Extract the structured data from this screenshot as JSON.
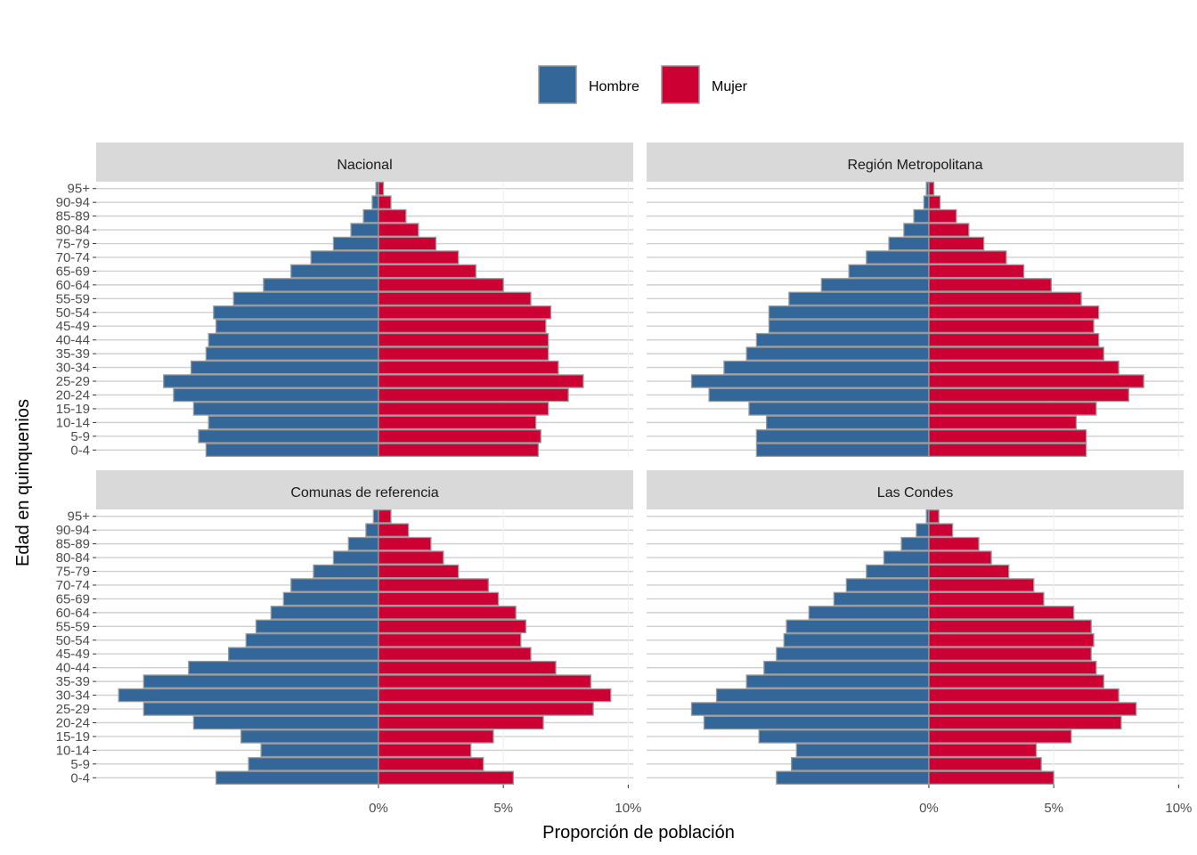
{
  "chart_data": {
    "type": "bar",
    "orientation": "horizontal",
    "xlabel": "Proporción de población",
    "ylabel": "Edad en quinquenios",
    "xticks": [
      "0%",
      "5%",
      "10%"
    ],
    "xlim": [
      -11.3,
      10.2
    ],
    "legend": {
      "position": "top",
      "entries": [
        {
          "name": "Hombre",
          "color": "#336699"
        },
        {
          "name": "Mujer",
          "color": "#CC0033"
        }
      ]
    },
    "grid": true,
    "categories": [
      "0-4",
      "5-9",
      "10-14",
      "15-19",
      "20-24",
      "25-29",
      "30-34",
      "35-39",
      "40-44",
      "45-49",
      "50-54",
      "55-59",
      "60-64",
      "65-69",
      "70-74",
      "75-79",
      "80-84",
      "85-89",
      "90-94",
      "95+"
    ],
    "panels": [
      {
        "title": "Nacional",
        "series": [
          {
            "name": "Hombre",
            "values": [
              -6.9,
              -7.2,
              -6.8,
              -7.4,
              -8.2,
              -8.6,
              -7.5,
              -6.9,
              -6.8,
              -6.5,
              -6.6,
              -5.8,
              -4.6,
              -3.5,
              -2.7,
              -1.8,
              -1.1,
              -0.6,
              -0.25,
              -0.1
            ]
          },
          {
            "name": "Mujer",
            "values": [
              6.4,
              6.5,
              6.3,
              6.8,
              7.6,
              8.2,
              7.2,
              6.8,
              6.8,
              6.7,
              6.9,
              6.1,
              5.0,
              3.9,
              3.2,
              2.3,
              1.6,
              1.1,
              0.5,
              0.2
            ]
          }
        ]
      },
      {
        "title": "Región Metropolitana",
        "series": [
          {
            "name": "Hombre",
            "values": [
              -6.9,
              -6.9,
              -6.5,
              -7.2,
              -8.8,
              -9.5,
              -8.2,
              -7.3,
              -6.9,
              -6.4,
              -6.4,
              -5.6,
              -4.3,
              -3.2,
              -2.5,
              -1.6,
              -1.0,
              -0.6,
              -0.2,
              -0.1
            ]
          },
          {
            "name": "Mujer",
            "values": [
              6.3,
              6.3,
              5.9,
              6.7,
              8.0,
              8.6,
              7.6,
              7.0,
              6.8,
              6.6,
              6.8,
              6.1,
              4.9,
              3.8,
              3.1,
              2.2,
              1.6,
              1.1,
              0.45,
              0.2
            ]
          }
        ]
      },
      {
        "title": "Comunas de referencia",
        "series": [
          {
            "name": "Hombre",
            "values": [
              -6.5,
              -5.2,
              -4.7,
              -5.5,
              -7.4,
              -9.4,
              -10.4,
              -9.4,
              -7.6,
              -6.0,
              -5.3,
              -4.9,
              -4.3,
              -3.8,
              -3.5,
              -2.6,
              -1.8,
              -1.2,
              -0.5,
              -0.2
            ]
          },
          {
            "name": "Mujer",
            "values": [
              5.4,
              4.2,
              3.7,
              4.6,
              6.6,
              8.6,
              9.3,
              8.5,
              7.1,
              6.1,
              5.7,
              5.9,
              5.5,
              4.8,
              4.4,
              3.2,
              2.6,
              2.1,
              1.2,
              0.5
            ]
          }
        ]
      },
      {
        "title": "Las Condes",
        "series": [
          {
            "name": "Hombre",
            "values": [
              -6.1,
              -5.5,
              -5.3,
              -6.8,
              -9.0,
              -9.5,
              -8.5,
              -7.3,
              -6.6,
              -6.1,
              -5.8,
              -5.7,
              -4.8,
              -3.8,
              -3.3,
              -2.5,
              -1.8,
              -1.1,
              -0.5,
              -0.1
            ]
          },
          {
            "name": "Mujer",
            "values": [
              5.0,
              4.5,
              4.3,
              5.7,
              7.7,
              8.3,
              7.6,
              7.0,
              6.7,
              6.5,
              6.6,
              6.5,
              5.8,
              4.6,
              4.2,
              3.2,
              2.5,
              2.0,
              0.95,
              0.4
            ]
          }
        ]
      }
    ]
  }
}
